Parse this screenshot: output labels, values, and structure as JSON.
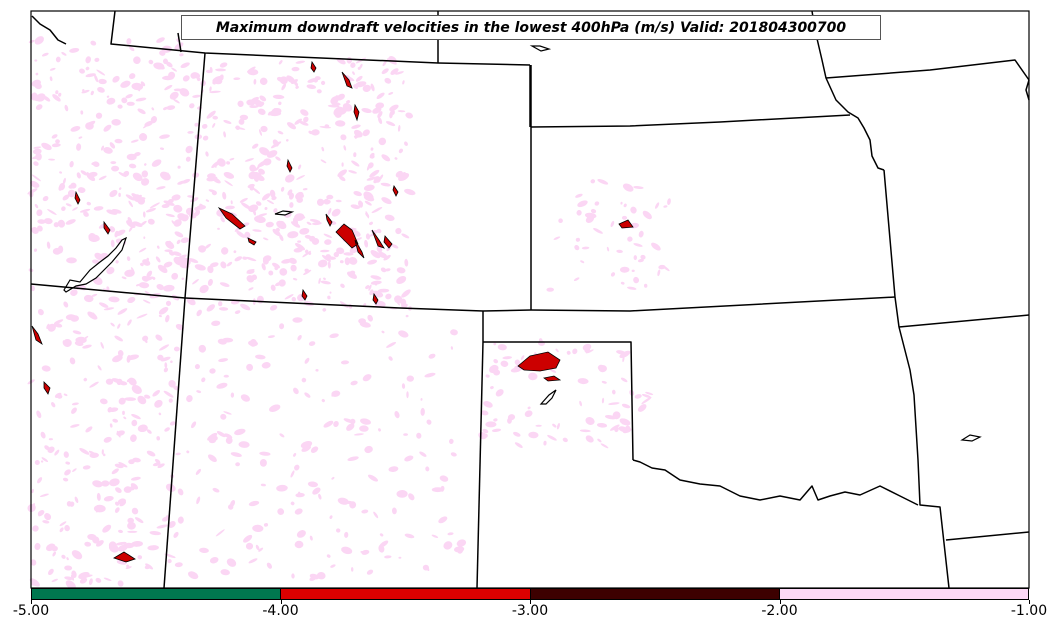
{
  "map": {
    "title": "Maximum downdraft velocities in the lowest 400hPa (m/s) Valid: 201804300700"
  },
  "colorbar": {
    "segments": [
      {
        "from": -5.0,
        "to": -4.0,
        "color": "#00774f"
      },
      {
        "from": -4.0,
        "to": -3.0,
        "color": "#dd0000"
      },
      {
        "from": -3.0,
        "to": -2.0,
        "color": "#3d0000"
      },
      {
        "from": -2.0,
        "to": -1.0,
        "color": "#fcd8f6"
      }
    ],
    "tick_labels": [
      "-5.00",
      "-4.00",
      "-3.00",
      "-2.00",
      "-1.00"
    ]
  },
  "colors": {
    "light_downdraft": "#fbd6f4",
    "strong_downdraft": "#cc0000",
    "boundary": "#000000"
  }
}
